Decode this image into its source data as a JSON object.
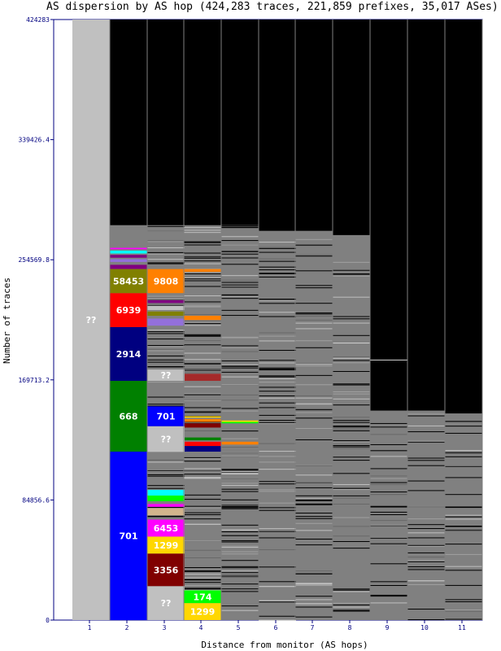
{
  "chart_data": {
    "type": "bar",
    "title": "AS dispersion by AS hop (424,283 traces, 221,859 prefixes, 35,017 ASes)",
    "xlabel": "Distance from monitor (AS hops)",
    "ylabel": "Number of traces",
    "ylim": [
      0,
      424283
    ],
    "y_ticks": [
      "0",
      "84856.6",
      "169713.2",
      "254569.8",
      "339426.4",
      "424283"
    ],
    "categories": [
      "1",
      "2",
      "3",
      "4",
      "5",
      "6",
      "7",
      "8",
      "9",
      "10",
      "11"
    ],
    "column_tops": [
      424283,
      279000,
      279000,
      279000,
      279000,
      275000,
      275000,
      272000,
      148000,
      148000,
      146000
    ],
    "grid": true,
    "background": "#000000",
    "gridline_color": "#808080",
    "unlabeled_segment_color": "#808080",
    "labeled_segments": [
      {
        "column": 1,
        "label": "??",
        "from": 0,
        "to": 424283,
        "color": "#c0c0c0",
        "text_color": "#ffffff"
      },
      {
        "column": 2,
        "label": "701",
        "from": 0,
        "to": 119000,
        "color": "#0000ff",
        "text_color": "#ffffff"
      },
      {
        "column": 2,
        "label": "668",
        "from": 119000,
        "to": 169000,
        "color": "#008000",
        "text_color": "#ffffff"
      },
      {
        "column": 2,
        "label": "2914",
        "from": 169000,
        "to": 207000,
        "color": "#000080",
        "text_color": "#ffffff"
      },
      {
        "column": 2,
        "label": "6939",
        "from": 207000,
        "to": 231000,
        "color": "#ff0000",
        "text_color": "#ffffff"
      },
      {
        "column": 2,
        "label": "58453",
        "from": 231000,
        "to": 248000,
        "color": "#808000",
        "text_color": "#ffffff"
      },
      {
        "column": 3,
        "label": "??",
        "from": 0,
        "to": 24000,
        "color": "#c0c0c0",
        "text_color": "#ffffff"
      },
      {
        "column": 3,
        "label": "3356",
        "from": 24000,
        "to": 47000,
        "color": "#800000",
        "text_color": "#ffffff"
      },
      {
        "column": 3,
        "label": "1299",
        "from": 47000,
        "to": 59000,
        "color": "#ffd700",
        "text_color": "#ffffff"
      },
      {
        "column": 3,
        "label": "6453",
        "from": 59000,
        "to": 71000,
        "color": "#ff00ff",
        "text_color": "#ffffff"
      },
      {
        "column": 3,
        "label": "??",
        "from": 119000,
        "to": 137000,
        "color": "#c0c0c0",
        "text_color": "#ffffff"
      },
      {
        "column": 3,
        "label": "701",
        "from": 137000,
        "to": 151000,
        "color": "#0000ff",
        "text_color": "#ffffff"
      },
      {
        "column": 3,
        "label": "??",
        "from": 169000,
        "to": 177000,
        "color": "#c0c0c0",
        "text_color": "#ffffff"
      },
      {
        "column": 3,
        "label": "9808",
        "from": 231000,
        "to": 248000,
        "color": "#ff8000",
        "text_color": "#ffffff"
      },
      {
        "column": 4,
        "label": "1299",
        "from": 0,
        "to": 12000,
        "color": "#ffd700",
        "text_color": "#ffffff"
      },
      {
        "column": 4,
        "label": "174",
        "from": 12000,
        "to": 21000,
        "color": "#00ff00",
        "text_color": "#ffffff"
      }
    ],
    "small_segments": [
      {
        "column": 2,
        "from": 248000,
        "to": 251000,
        "color": "#800080"
      },
      {
        "column": 2,
        "from": 253000,
        "to": 255000,
        "color": "#9370db"
      },
      {
        "column": 2,
        "from": 256000,
        "to": 258000,
        "color": "#800080"
      },
      {
        "column": 2,
        "from": 259000,
        "to": 261000,
        "color": "#00ffff"
      },
      {
        "column": 2,
        "from": 262000,
        "to": 263000,
        "color": "#ff00ff"
      },
      {
        "column": 3,
        "from": 74000,
        "to": 79000,
        "color": "#d2b48c"
      },
      {
        "column": 3,
        "from": 80000,
        "to": 82000,
        "color": "#ff00ff"
      },
      {
        "column": 3,
        "from": 84000,
        "to": 88000,
        "color": "#00ff00"
      },
      {
        "column": 3,
        "from": 88000,
        "to": 92000,
        "color": "#00ffff"
      },
      {
        "column": 3,
        "from": 208000,
        "to": 213000,
        "color": "#9370db"
      },
      {
        "column": 3,
        "from": 215000,
        "to": 218000,
        "color": "#808000"
      },
      {
        "column": 3,
        "from": 219000,
        "to": 222000,
        "color": "#c0c0c0"
      },
      {
        "column": 3,
        "from": 224000,
        "to": 226000,
        "color": "#800080"
      },
      {
        "column": 4,
        "from": 119000,
        "to": 123000,
        "color": "#000080"
      },
      {
        "column": 4,
        "from": 123000,
        "to": 126000,
        "color": "#ff0000"
      },
      {
        "column": 4,
        "from": 127000,
        "to": 129000,
        "color": "#008000"
      },
      {
        "column": 4,
        "from": 136000,
        "to": 139000,
        "color": "#800000"
      },
      {
        "column": 4,
        "from": 140000,
        "to": 142000,
        "color": "#ff8000"
      },
      {
        "column": 4,
        "from": 143000,
        "to": 144000,
        "color": "#ffd700"
      },
      {
        "column": 4,
        "from": 169000,
        "to": 174000,
        "color": "#a52a2a"
      },
      {
        "column": 4,
        "from": 212000,
        "to": 215000,
        "color": "#ff8000"
      },
      {
        "column": 4,
        "from": 246000,
        "to": 248000,
        "color": "#ff8000"
      },
      {
        "column": 5,
        "from": 124000,
        "to": 126000,
        "color": "#ff8000"
      },
      {
        "column": 5,
        "from": 139000,
        "to": 140000,
        "color": "#00ff00"
      },
      {
        "column": 5,
        "from": 140000,
        "to": 141000,
        "color": "#ffd700"
      }
    ],
    "thin_line_colors": [
      "#808080",
      "#a0a0a0",
      "#c0c0c0",
      "#686868"
    ],
    "light_line_color": "#d3d3d3"
  }
}
